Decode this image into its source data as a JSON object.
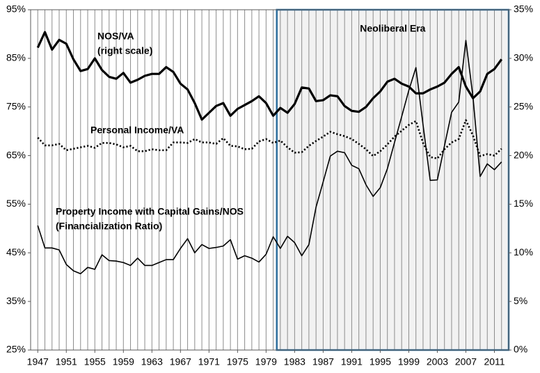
{
  "chart_data": {
    "type": "line",
    "x": [
      1947,
      1948,
      1949,
      1950,
      1951,
      1952,
      1953,
      1954,
      1955,
      1956,
      1957,
      1958,
      1959,
      1960,
      1961,
      1962,
      1963,
      1964,
      1965,
      1966,
      1967,
      1968,
      1969,
      1970,
      1971,
      1972,
      1973,
      1974,
      1975,
      1976,
      1977,
      1978,
      1979,
      1980,
      1981,
      1982,
      1983,
      1984,
      1985,
      1986,
      1987,
      1988,
      1989,
      1990,
      1991,
      1992,
      1993,
      1994,
      1995,
      1996,
      1997,
      1998,
      1999,
      2000,
      2001,
      2002,
      2003,
      2004,
      2005,
      2006,
      2007,
      2008,
      2009,
      2010,
      2011,
      2012
    ],
    "xlim": [
      1946,
      2013
    ],
    "xticks": [
      1947,
      1951,
      1955,
      1959,
      1963,
      1967,
      1971,
      1975,
      1979,
      1983,
      1987,
      1991,
      1995,
      1999,
      2003,
      2007,
      2011
    ],
    "ylim": [
      25,
      95
    ],
    "yticks": [
      {
        "value": 25,
        "label": "25%"
      },
      {
        "value": 35,
        "label": "35%"
      },
      {
        "value": 45,
        "label": "45%"
      },
      {
        "value": 55,
        "label": "55%"
      },
      {
        "value": 65,
        "label": "65%"
      },
      {
        "value": 75,
        "label": "75%"
      },
      {
        "value": 85,
        "label": "85%"
      },
      {
        "value": 95,
        "label": "95%"
      }
    ],
    "y2lim": [
      0,
      35
    ],
    "y2ticks": [
      {
        "value": 0,
        "label": "0%"
      },
      {
        "value": 5,
        "label": "5%"
      },
      {
        "value": 10,
        "label": "10%"
      },
      {
        "value": 15,
        "label": "15%"
      },
      {
        "value": 20,
        "label": "20%"
      },
      {
        "value": 25,
        "label": "25%"
      },
      {
        "value": 30,
        "label": "30%"
      },
      {
        "value": 35,
        "label": "35%"
      }
    ],
    "grid": true,
    "shaded_region": {
      "label": "Neoliberal Era",
      "x": [
        1980.5,
        2013
      ],
      "fill": "#f2f2f2",
      "border": "#2e6f9e"
    },
    "series": [
      {
        "name": "NOS/VA",
        "note": "(right scale)",
        "axis": "y2",
        "color": "#000000",
        "line_width": 3.2,
        "dash": "solid",
        "values": [
          31.1,
          32.7,
          30.9,
          31.9,
          31.5,
          29.9,
          28.7,
          28.9,
          30.0,
          28.8,
          28.1,
          27.9,
          28.5,
          27.5,
          27.8,
          28.2,
          28.4,
          28.4,
          29.1,
          28.6,
          27.4,
          26.8,
          25.4,
          23.7,
          24.4,
          25.1,
          25.4,
          24.1,
          24.8,
          25.2,
          25.6,
          26.1,
          25.4,
          24.1,
          24.9,
          24.4,
          25.3,
          27.0,
          26.9,
          25.6,
          25.7,
          26.2,
          26.1,
          25.1,
          24.6,
          24.5,
          25.0,
          25.9,
          26.6,
          27.6,
          27.9,
          27.4,
          27.1,
          26.4,
          26.4,
          26.8,
          27.1,
          27.5,
          28.4,
          29.1,
          27.1,
          25.9,
          26.6,
          28.4,
          28.9,
          29.9
        ]
      },
      {
        "name": "Personal Income/VA",
        "color": "#000000",
        "line_width": 2.6,
        "dash": "dotted",
        "values": [
          68.7,
          67.1,
          67.1,
          67.4,
          66.1,
          66.4,
          66.7,
          67.0,
          66.6,
          67.6,
          67.6,
          67.3,
          66.7,
          67.0,
          65.9,
          65.9,
          66.3,
          66.1,
          66.1,
          67.7,
          67.7,
          67.6,
          68.4,
          67.7,
          67.7,
          67.4,
          68.6,
          67.0,
          66.9,
          66.3,
          66.4,
          67.9,
          68.4,
          67.6,
          68.1,
          66.7,
          65.6,
          65.7,
          67.0,
          68.0,
          68.9,
          69.9,
          69.4,
          69.0,
          68.4,
          67.4,
          66.3,
          64.9,
          65.9,
          67.3,
          68.9,
          70.1,
          71.3,
          72.1,
          67.6,
          64.7,
          64.4,
          66.3,
          67.7,
          68.4,
          72.3,
          69.1,
          64.9,
          65.3,
          65.0,
          66.4
        ]
      },
      {
        "name": "Property Income with Capital Gains/NOS",
        "note": "(Financialization Ratio)",
        "color": "#000000",
        "line_width": 1.6,
        "dash": "solid",
        "values": [
          50.6,
          46.0,
          46.0,
          45.6,
          42.6,
          41.3,
          40.7,
          42.0,
          41.6,
          44.6,
          43.4,
          43.3,
          43.0,
          42.4,
          43.9,
          42.4,
          42.4,
          43.0,
          43.6,
          43.6,
          45.9,
          47.9,
          45.0,
          46.7,
          45.9,
          46.1,
          46.4,
          47.7,
          43.7,
          44.4,
          43.9,
          43.1,
          44.7,
          48.3,
          45.9,
          48.4,
          47.1,
          44.4,
          46.7,
          54.4,
          59.6,
          64.9,
          65.9,
          65.6,
          63.0,
          62.3,
          59.0,
          56.6,
          58.4,
          62.3,
          67.7,
          73.0,
          78.4,
          83.1,
          71.3,
          59.9,
          60.0,
          67.0,
          73.9,
          76.0,
          88.7,
          77.0,
          60.7,
          63.3,
          62.1,
          63.7
        ]
      }
    ]
  }
}
